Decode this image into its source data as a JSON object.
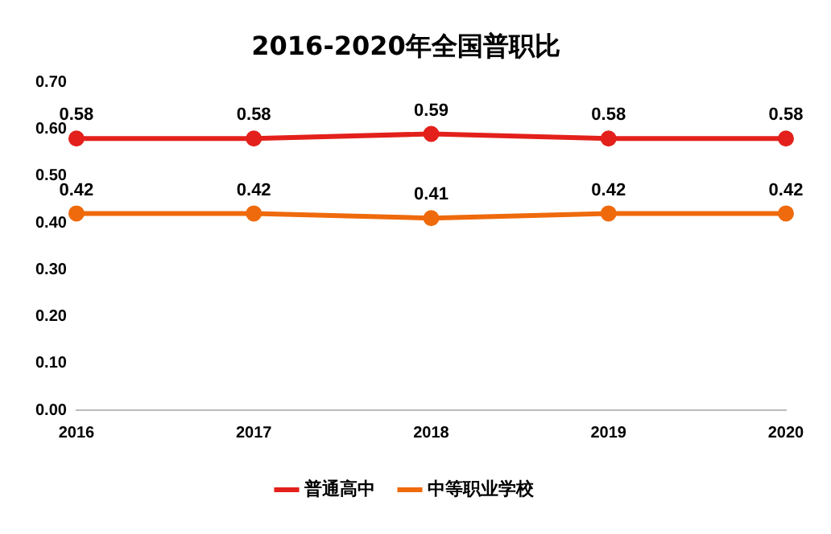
{
  "chart_data": {
    "type": "line",
    "title": "2016-2020年全国普职比",
    "categories": [
      "2016",
      "2017",
      "2018",
      "2019",
      "2020"
    ],
    "series": [
      {
        "name": "普通高中",
        "color": "#e3201b",
        "values": [
          0.58,
          0.58,
          0.59,
          0.58,
          0.58
        ]
      },
      {
        "name": "中等职业学校",
        "color": "#ef6a0c",
        "values": [
          0.42,
          0.42,
          0.41,
          0.42,
          0.42
        ]
      }
    ],
    "ylim": [
      0,
      0.7
    ],
    "yticks": [
      {
        "value": 0,
        "label": "0.00"
      },
      {
        "value": 0.1,
        "label": "0.10"
      },
      {
        "value": 0.2,
        "label": "0.20"
      },
      {
        "value": 0.3,
        "label": "0.30"
      },
      {
        "value": 0.4,
        "label": "0.40"
      },
      {
        "value": 0.5,
        "label": "0.50"
      },
      {
        "value": 0.6,
        "label": "0.60"
      },
      {
        "value": 0.7,
        "label": "0.70"
      }
    ],
    "grid": false,
    "legend": "bottom",
    "marker": "circle",
    "line_style": "solid",
    "data_labels": true
  }
}
